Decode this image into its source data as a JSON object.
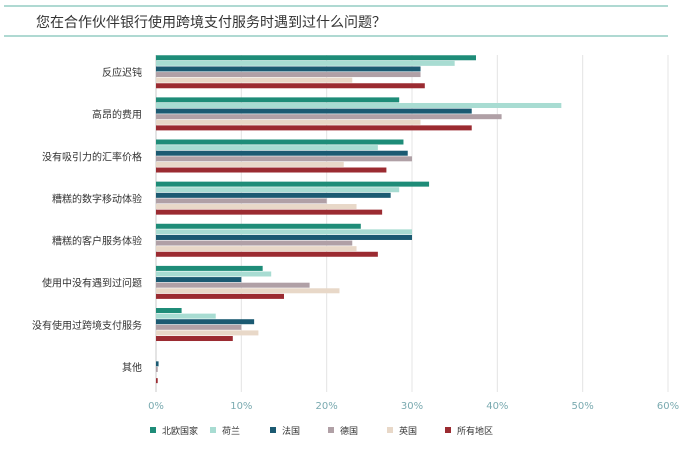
{
  "chart_data": {
    "type": "bar",
    "orientation": "horizontal",
    "title": "您在合作伙伴银行使用跨境支付服务时遇到过什么问题？",
    "categories": [
      "反应迟钝",
      "高昂的费用",
      "没有吸引力的汇率价格",
      "糟糕的数字移动体验",
      "糟糕的客户服务体验",
      "使用中没有遇到过问题",
      "没有使用过跨境支付服务",
      "其他"
    ],
    "series": [
      {
        "name": "北欧国家",
        "color": "#1e8c78",
        "values": [
          37.5,
          28.5,
          29,
          32,
          24,
          12.5,
          3,
          0
        ]
      },
      {
        "name": "荷兰",
        "color": "#a8dcd2",
        "values": [
          35,
          47.5,
          26,
          28.5,
          30,
          13.5,
          7,
          0
        ]
      },
      {
        "name": "法国",
        "color": "#1b5a72",
        "values": [
          31,
          37,
          29.5,
          27.5,
          30,
          10,
          11.5,
          0.3
        ]
      },
      {
        "name": "德国",
        "color": "#b0a0a6",
        "values": [
          31,
          40.5,
          30,
          20,
          23,
          18,
          10,
          0.2
        ]
      },
      {
        "name": "英国",
        "color": "#e8d8c8",
        "values": [
          23,
          31,
          22,
          23.5,
          23.5,
          21.5,
          12,
          0
        ]
      },
      {
        "name": "所有地区",
        "color": "#9b2b31",
        "values": [
          31.5,
          37,
          27,
          26.5,
          26,
          15,
          9,
          0.2
        ]
      }
    ],
    "xlim": [
      0,
      60
    ],
    "xticks": [
      "0%",
      "10%",
      "20%",
      "30%",
      "40%",
      "50%",
      "60%"
    ],
    "grid": "vertical",
    "legend_position": "bottom",
    "tick_label_color": "#7aaab0",
    "title_rule_color": "#5fb3a4"
  }
}
